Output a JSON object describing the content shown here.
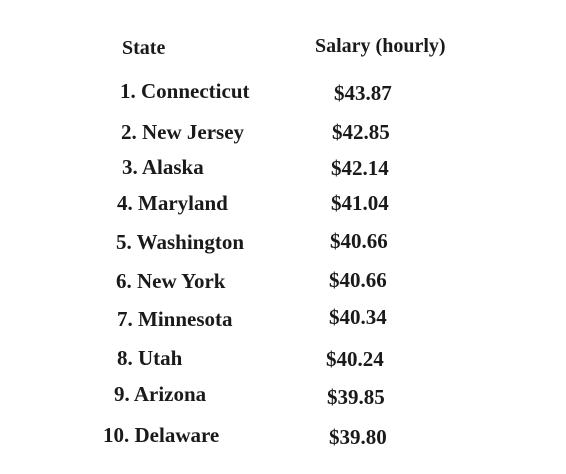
{
  "table": {
    "headers": {
      "state": "State",
      "salary": "Salary (hourly)"
    },
    "rows": [
      {
        "state": "1. Connecticut",
        "salary": "$43.87"
      },
      {
        "state": "2. New Jersey",
        "salary": "$42.85"
      },
      {
        "state": "3. Alaska",
        "salary": "$42.14"
      },
      {
        "state": "4. Maryland",
        "salary": "$41.04"
      },
      {
        "state": "5. Washington",
        "salary": "$40.66"
      },
      {
        "state": "6. New York",
        "salary": "$40.66"
      },
      {
        "state": "7. Minnesota",
        "salary": "$40.34"
      },
      {
        "state": "8. Utah",
        "salary": "$40.24"
      },
      {
        "state": "9. Arizona",
        "salary": "$39.85"
      },
      {
        "state": "10. Delaware",
        "salary": "$39.80"
      }
    ]
  }
}
